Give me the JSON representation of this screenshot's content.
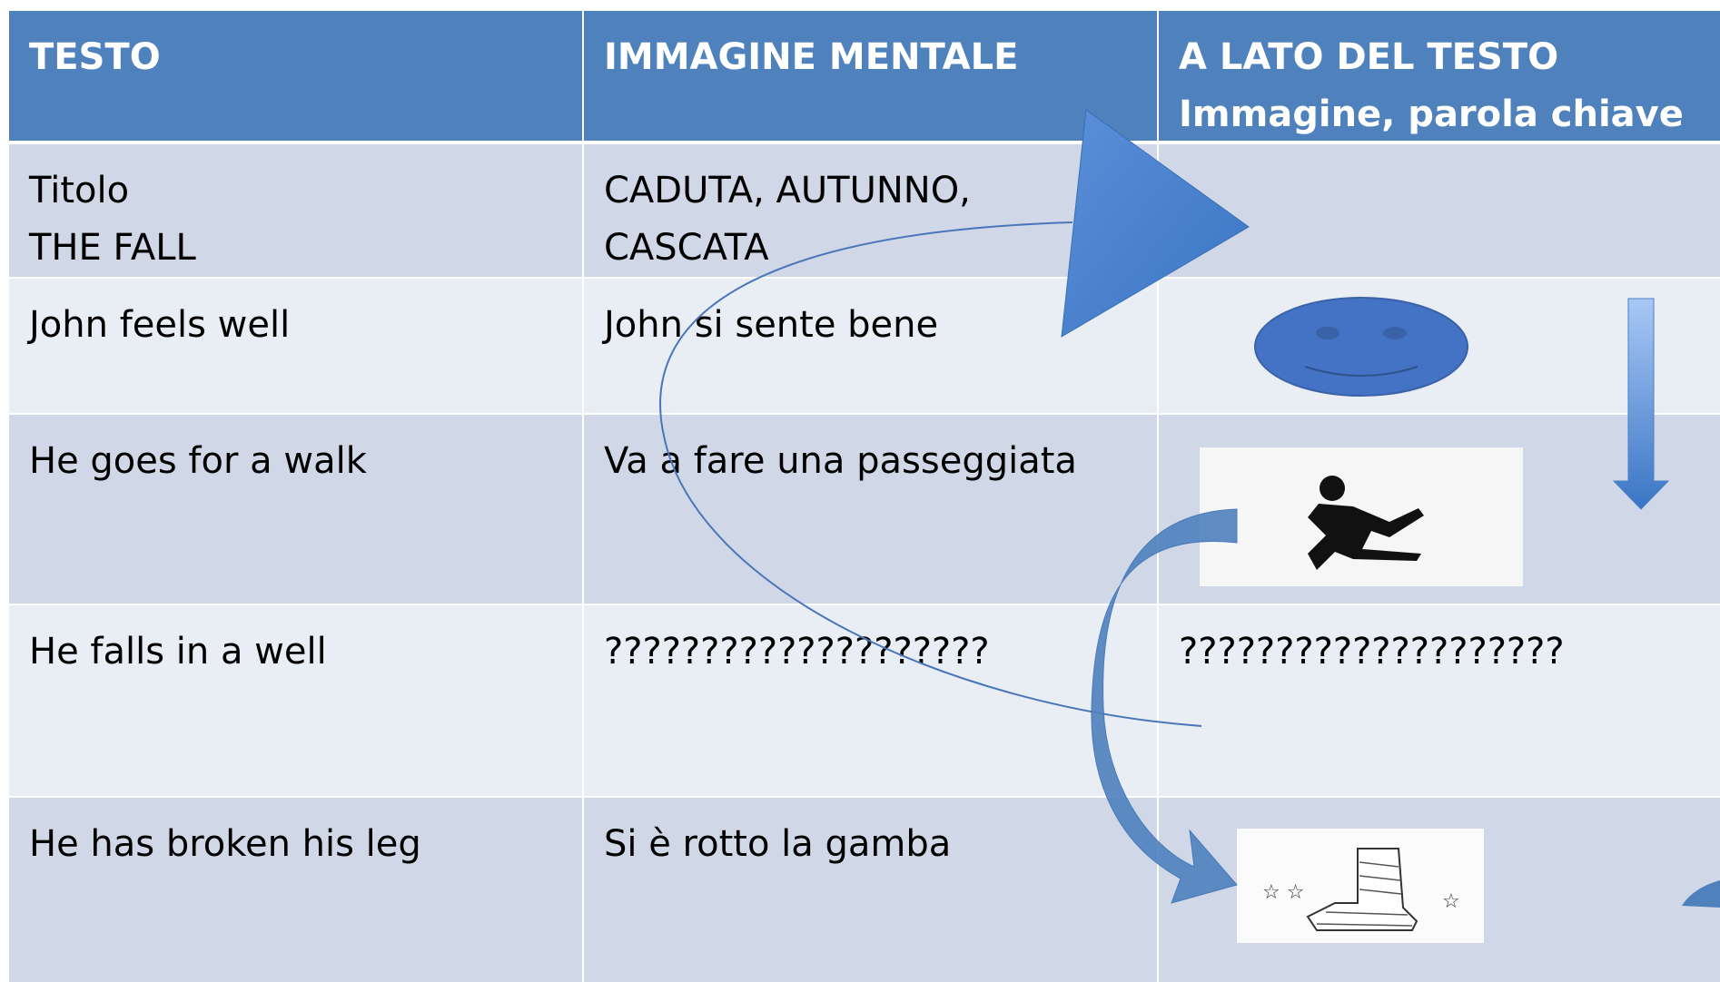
{
  "table": {
    "header": [
      {
        "lines": [
          "TESTO"
        ]
      },
      {
        "lines": [
          "IMMAGINE MENTALE"
        ]
      },
      {
        "lines": [
          "A LATO DEL TESTO",
          "Immagine, parola chiave"
        ]
      }
    ],
    "rows": [
      [
        {
          "lines": [
            "Titolo",
            "THE FALL"
          ]
        },
        {
          "lines": [
            "CADUTA, AUTUNNO,",
            "CASCATA"
          ]
        },
        {
          "lines": []
        }
      ],
      [
        {
          "lines": [
            "John feels well"
          ]
        },
        {
          "lines": [
            "John si sente bene"
          ]
        },
        {
          "lines": []
        }
      ],
      [
        {
          "lines": [
            "He goes for a walk"
          ]
        },
        {
          "lines": [
            "Va a fare una passeggiata"
          ]
        },
        {
          "lines": []
        }
      ],
      [
        {
          "lines": [
            "He falls in a well"
          ]
        },
        {
          "lines": [
            "????????????????????"
          ]
        },
        {
          "lines": [
            "????????????????????"
          ]
        }
      ],
      [
        {
          "lines": [
            "He has broken his leg"
          ]
        },
        {
          "lines": [
            "Si è rotto la gamba"
          ]
        },
        {
          "lines": []
        }
      ]
    ]
  }
}
